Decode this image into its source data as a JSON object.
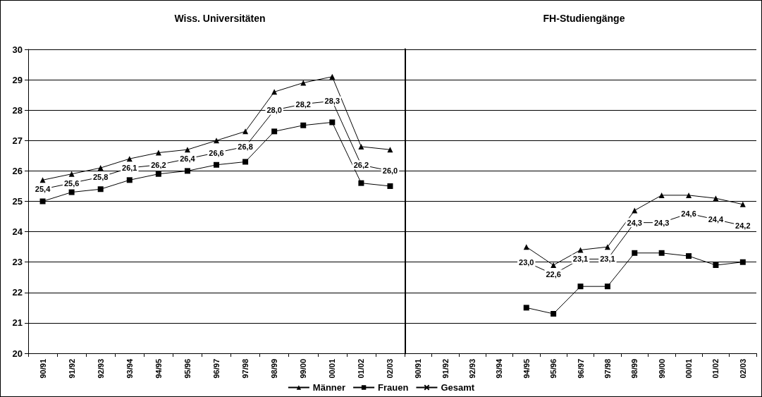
{
  "chart_data": [
    {
      "type": "line",
      "title": "Wiss. Universitäten",
      "categories": [
        "90/91",
        "91/92",
        "92/93",
        "93/94",
        "94/95",
        "95/96",
        "96/97",
        "97/98",
        "98/99",
        "99/00",
        "00/01",
        "01/02",
        "02/03"
      ],
      "ylim": [
        20,
        30
      ],
      "yticks": [
        20,
        21,
        22,
        23,
        24,
        25,
        26,
        27,
        28,
        29,
        30
      ],
      "grid": "y",
      "legend": "bottom",
      "series": [
        {
          "name": "Männer",
          "color": "#000000",
          "marker": "triangle",
          "values": [
            25.7,
            25.9,
            26.1,
            26.4,
            26.6,
            26.7,
            27.0,
            27.3,
            28.6,
            28.9,
            29.1,
            26.8,
            26.7
          ]
        },
        {
          "name": "Frauen",
          "color": "#000000",
          "marker": "square",
          "values": [
            25.0,
            25.3,
            25.4,
            25.7,
            25.9,
            26.0,
            26.2,
            26.3,
            27.3,
            27.5,
            27.6,
            25.6,
            25.5
          ]
        },
        {
          "name": "Gesamt",
          "color": "#000000",
          "marker": "cross",
          "values": [
            25.4,
            25.6,
            25.8,
            26.1,
            26.2,
            26.4,
            26.6,
            26.8,
            28.0,
            28.2,
            28.3,
            26.2,
            26.0
          ],
          "value_labels": [
            "25,4",
            "25,6",
            "25,8",
            "26,1",
            "26,2",
            "26,4",
            "26,6",
            "26,8",
            "28,0",
            "28,2",
            "28,3",
            "26,2",
            "26,0"
          ]
        }
      ]
    },
    {
      "type": "line",
      "title": "FH-Studiengänge",
      "categories": [
        "90/91",
        "91/92",
        "92/93",
        "93/94",
        "94/95",
        "95/96",
        "96/97",
        "97/98",
        "98/99",
        "99/00",
        "00/01",
        "01/02",
        "02/03"
      ],
      "ylim": [
        20,
        30
      ],
      "yticks": [
        20,
        21,
        22,
        23,
        24,
        25,
        26,
        27,
        28,
        29,
        30
      ],
      "grid": "y",
      "tick_labels": "x",
      "series": [
        {
          "color": "#000000",
          "marker": "triangle",
          "values": [
            null,
            null,
            null,
            null,
            23.5,
            22.9,
            23.4,
            23.5,
            24.7,
            25.2,
            25.2,
            25.1,
            24.9
          ]
        },
        {
          "color": "#000000",
          "marker": "square",
          "values": [
            null,
            null,
            null,
            null,
            21.5,
            21.3,
            22.2,
            22.2,
            23.3,
            23.3,
            23.2,
            22.9,
            23.0
          ]
        },
        {
          "color": "#000000",
          "marker": "cross",
          "values": [
            null,
            null,
            null,
            null,
            23.0,
            22.6,
            23.1,
            23.1,
            24.3,
            24.3,
            24.6,
            24.4,
            24.2
          ],
          "value_labels": [
            null,
            null,
            null,
            null,
            "23,0",
            "22,6",
            "23,1",
            "23,1",
            "24,3",
            "24,3",
            "24,6",
            "24,4",
            "24,2"
          ]
        }
      ]
    }
  ]
}
